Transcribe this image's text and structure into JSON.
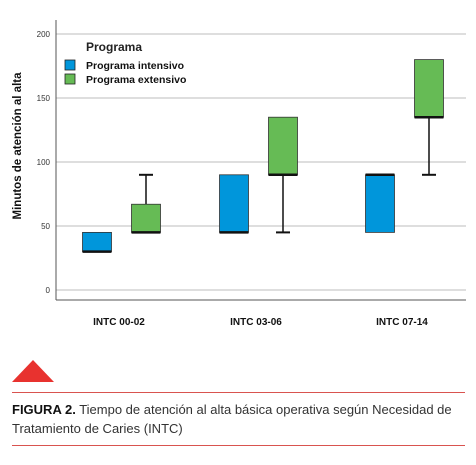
{
  "chart_data": {
    "type": "boxplot",
    "title": "",
    "ylabel": "Minutos de atención al alta",
    "xlabel": "",
    "ylim": [
      0,
      200
    ],
    "yticks": [
      0,
      50,
      100,
      150,
      200
    ],
    "grid": "horizontal",
    "categories": [
      "INTC 00-02",
      "INTC 03-06",
      "INTC 07-14"
    ],
    "legend": {
      "title": "Programa",
      "position": "top-left"
    },
    "series": [
      {
        "name": "Programa intensivo",
        "color": "#0096db",
        "boxes": [
          {
            "min": 30,
            "q1": 30,
            "median": 30,
            "q3": 45,
            "max": 45
          },
          {
            "min": 45,
            "q1": 45,
            "median": 45,
            "q3": 90,
            "max": 90
          },
          {
            "min": 45,
            "q1": 45,
            "median": 90,
            "q3": 90,
            "max": 90
          }
        ]
      },
      {
        "name": "Programa extensivo",
        "color": "#66bb55",
        "boxes": [
          {
            "min": 45,
            "q1": 45,
            "median": 45,
            "q3": 67,
            "max": 90
          },
          {
            "min": 45,
            "q1": 90,
            "median": 90,
            "q3": 135,
            "max": 135
          },
          {
            "min": 90,
            "q1": 135,
            "median": 135,
            "q3": 180,
            "max": 180
          }
        ]
      }
    ]
  },
  "caption": {
    "label": "FIGURA 2.",
    "text": "Tiempo de atención al alta básica operativa según Necesidad de Tratamiento de Caries (INTC)"
  }
}
